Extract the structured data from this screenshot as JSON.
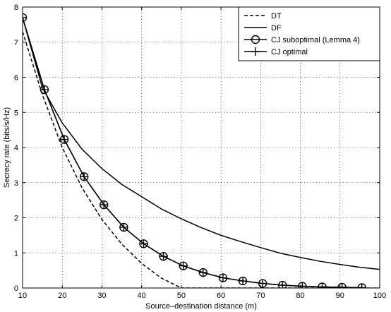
{
  "chart_data": {
    "type": "line",
    "title": "",
    "xlabel": "Source–destination distance (m)",
    "ylabel": "Secrecy rate (bits/s/Hz)",
    "xlim": [
      10,
      100
    ],
    "ylim": [
      0,
      8
    ],
    "xticks": [
      10,
      20,
      30,
      40,
      50,
      60,
      70,
      80,
      90,
      100
    ],
    "yticks": [
      0,
      1,
      2,
      3,
      4,
      5,
      6,
      7,
      8
    ],
    "grid": true,
    "legend_position": "top-right",
    "series": [
      {
        "name": "DT",
        "style": "dashed",
        "marker": "none",
        "x": [
          10,
          15,
          20,
          25,
          30,
          35,
          40,
          45,
          50,
          55,
          60,
          70,
          80,
          90,
          100
        ],
        "y": [
          7.3,
          5.5,
          4.0,
          2.85,
          1.95,
          1.25,
          0.7,
          0.28,
          0.0,
          0.0,
          0.0,
          0.0,
          0.0,
          0.0,
          0.0
        ]
      },
      {
        "name": "DF",
        "style": "solid",
        "marker": "none",
        "x": [
          10,
          15,
          20,
          25,
          30,
          35,
          40,
          45,
          50,
          55,
          60,
          65,
          70,
          75,
          80,
          85,
          90,
          95,
          100
        ],
        "y": [
          7.7,
          5.7,
          4.7,
          3.95,
          3.4,
          2.95,
          2.6,
          2.25,
          1.97,
          1.72,
          1.5,
          1.32,
          1.15,
          0.99,
          0.87,
          0.76,
          0.67,
          0.59,
          0.53
        ]
      },
      {
        "name": "CJ suboptimal (Lemma 4)",
        "style": "solid",
        "marker": "circle",
        "x": [
          10,
          15.5,
          20.5,
          25.5,
          30.5,
          35.5,
          40.5,
          45.5,
          50.5,
          55.5,
          60.5,
          65.5,
          70.5,
          75.5,
          80.5,
          85.5,
          90.5,
          95.5
        ],
        "y": [
          7.7,
          5.65,
          4.23,
          3.17,
          2.37,
          1.73,
          1.26,
          0.9,
          0.63,
          0.44,
          0.29,
          0.2,
          0.13,
          0.08,
          0.05,
          0.03,
          0.02,
          0.01
        ]
      },
      {
        "name": "CJ optimal",
        "style": "solid",
        "marker": "plus",
        "x": [
          10,
          15.5,
          20.5,
          25.5,
          30.5,
          35.5,
          40.5,
          45.5,
          50.5,
          55.5,
          60.5,
          65.5,
          70.5,
          75.5,
          80.5,
          85.5,
          90.5,
          95.5
        ],
        "y": [
          7.7,
          5.65,
          4.23,
          3.17,
          2.37,
          1.73,
          1.26,
          0.9,
          0.63,
          0.44,
          0.29,
          0.2,
          0.13,
          0.08,
          0.05,
          0.03,
          0.02,
          0.01
        ]
      }
    ]
  }
}
